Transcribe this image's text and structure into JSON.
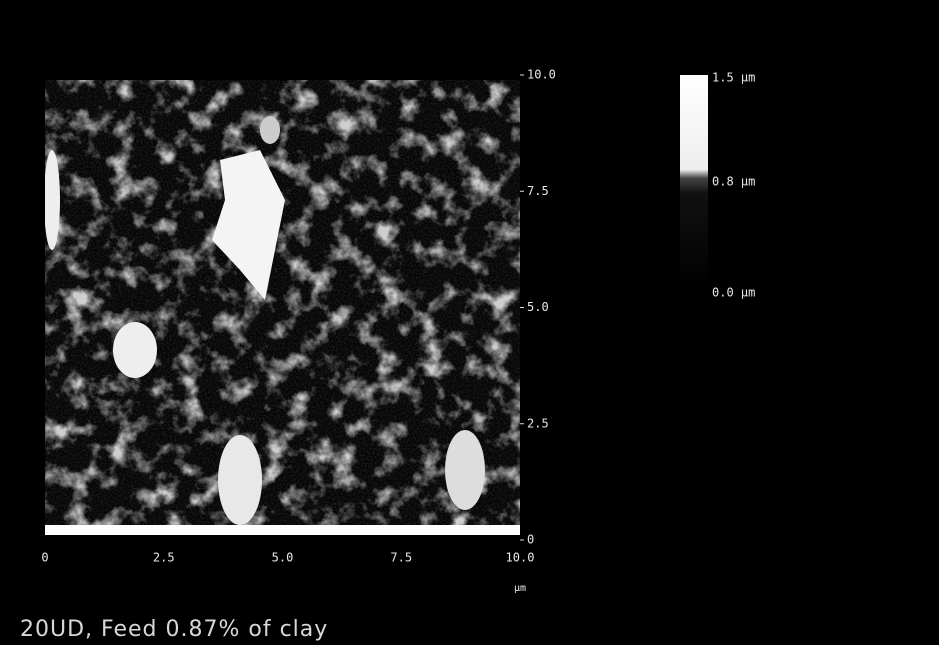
{
  "image": {
    "x_axis": {
      "ticks": [
        "0",
        "2.5",
        "5.0",
        "7.5",
        "10.0"
      ],
      "unit": "µm"
    },
    "y_axis": {
      "ticks": [
        "0",
        "2.5",
        "5.0",
        "7.5",
        "10.0"
      ]
    },
    "colorbar": {
      "labels": [
        "1.5 µm",
        "0.8 µm",
        "0.0 µm"
      ]
    }
  },
  "caption": "20UD, Feed 0.87% of clay"
}
